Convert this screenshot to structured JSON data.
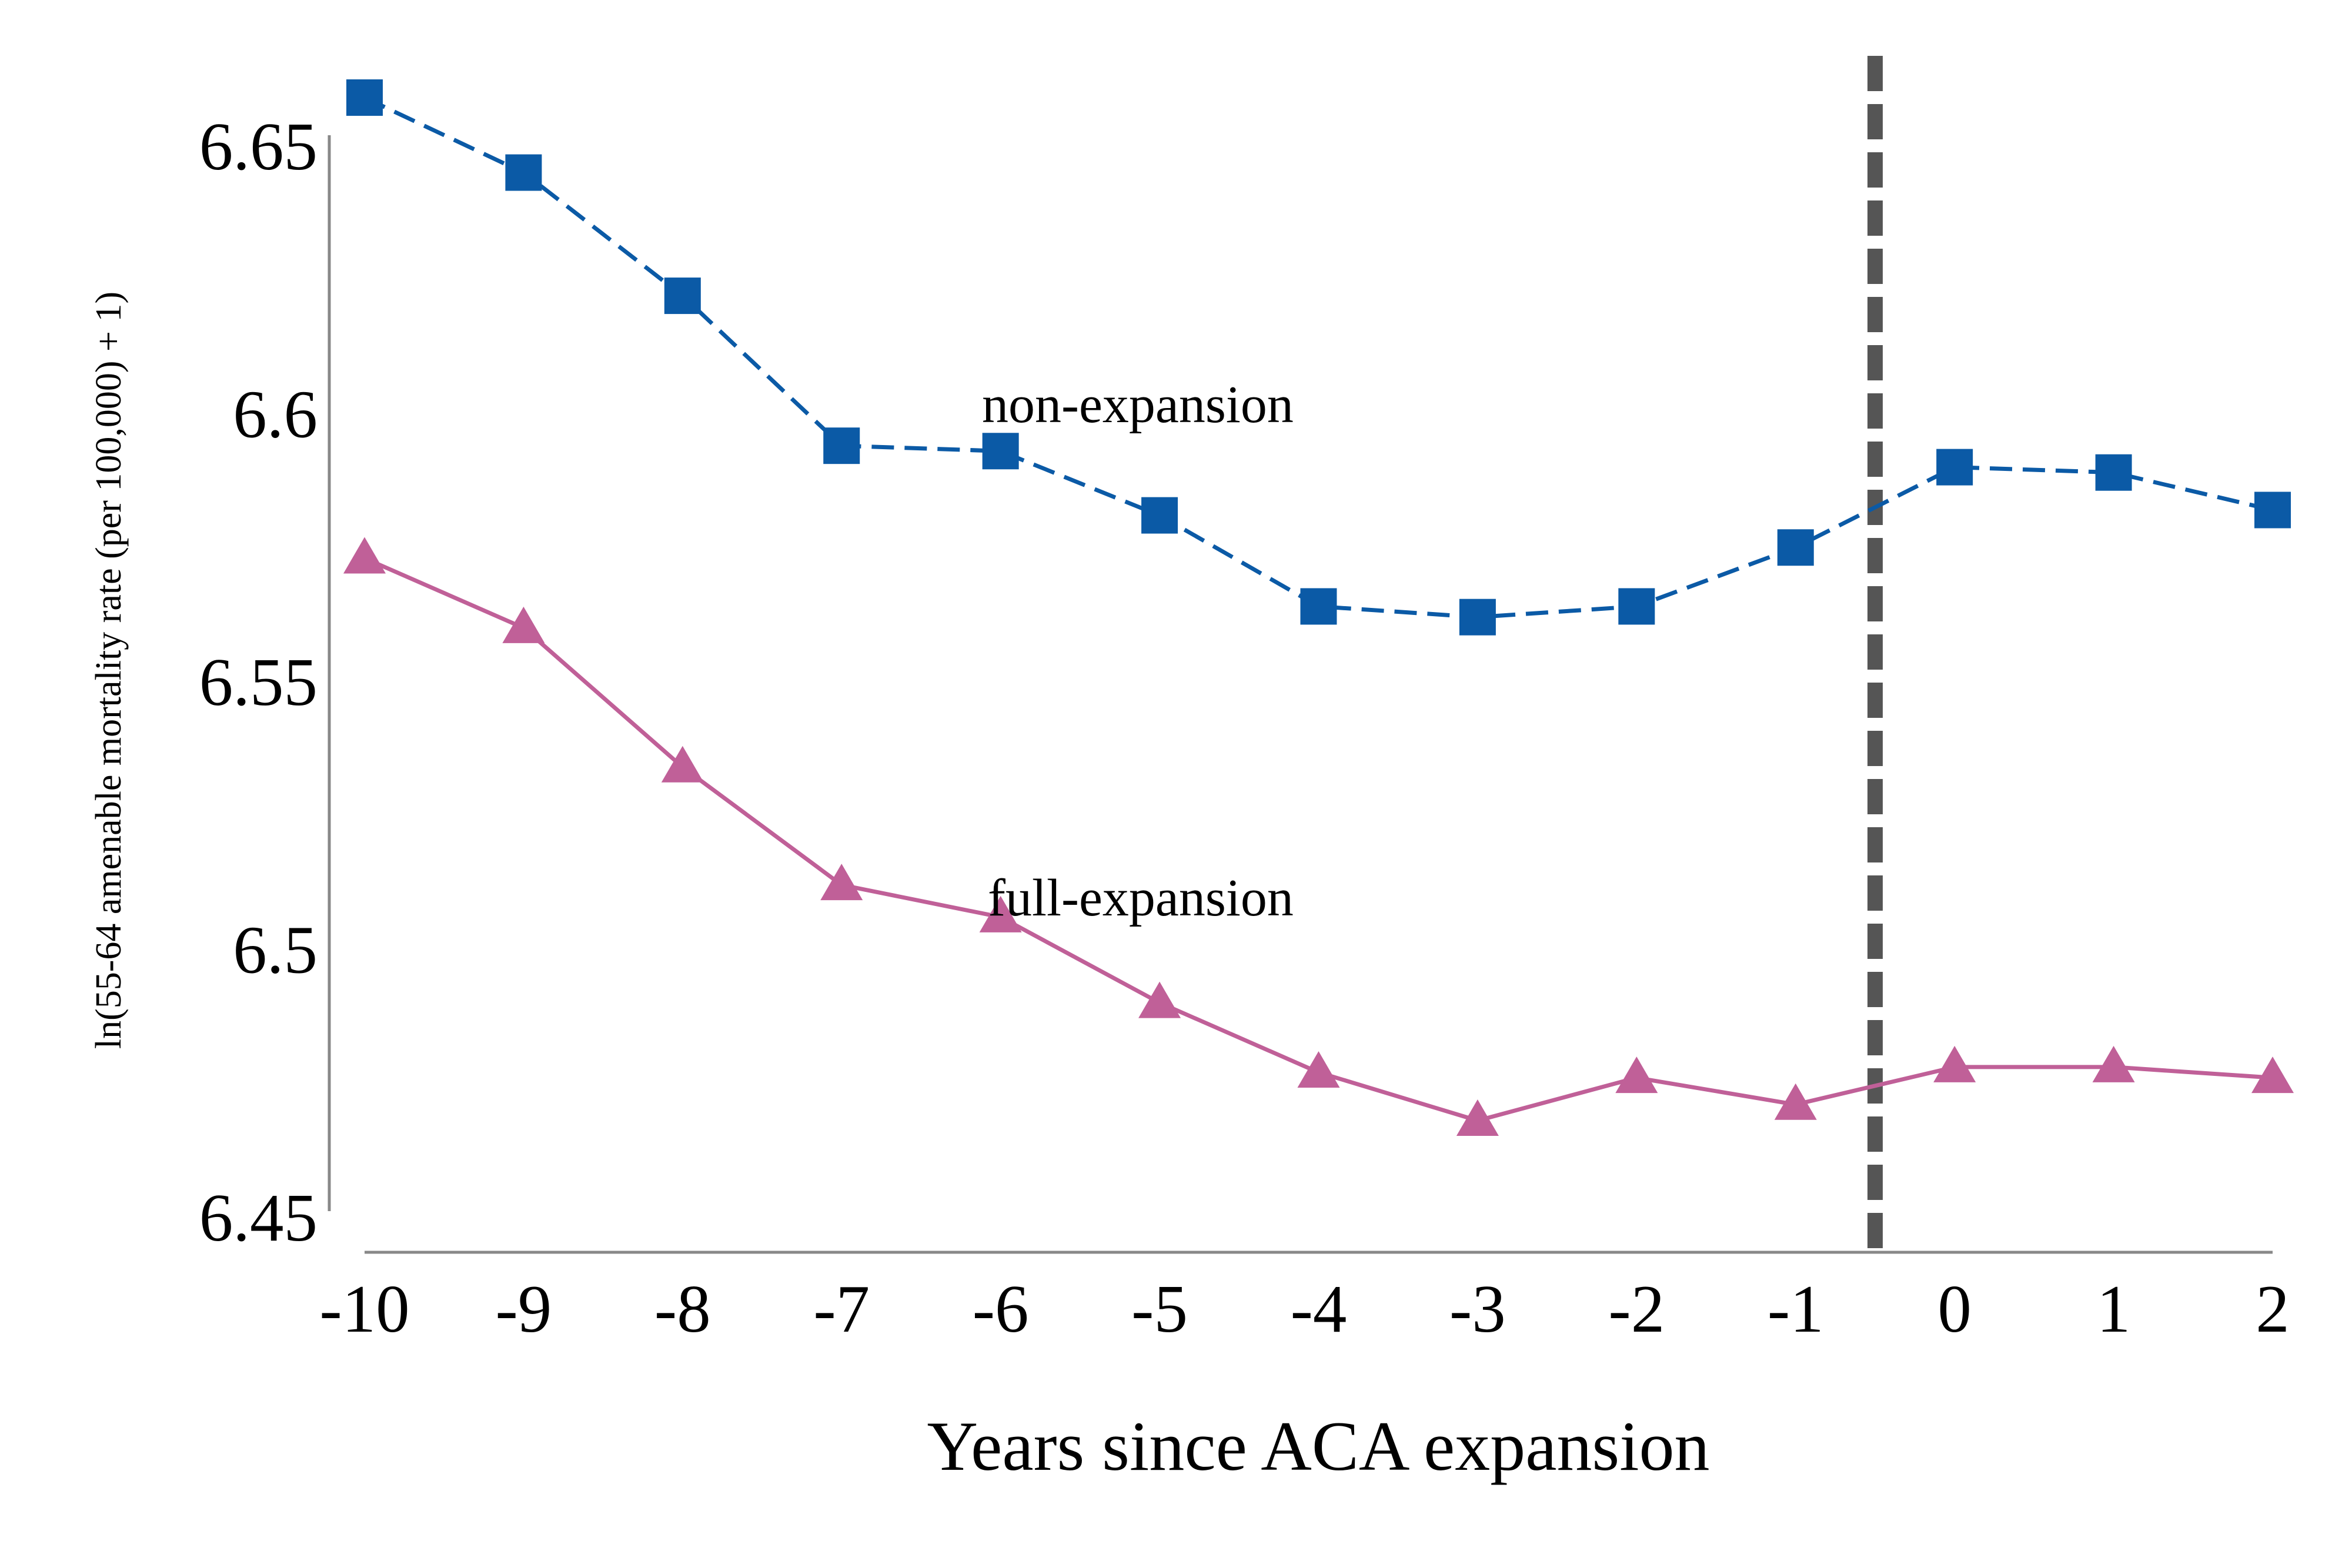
{
  "chart_data": {
    "type": "line",
    "xlabel": "Years since ACA expansion",
    "ylabel": "ln(55-64 amenable mortality rate (per 100,000) + 1)",
    "x": [
      -10,
      -9,
      -8,
      -7,
      -6,
      -5,
      -4,
      -3,
      -2,
      -1,
      0,
      1,
      2
    ],
    "x_tick_labels": [
      "-10",
      "-9",
      "-8",
      "-7",
      "-6",
      "-5",
      "-4",
      "-3",
      "-2",
      "-1",
      "0",
      "1",
      "2"
    ],
    "y_tick_labels": [
      "6.45",
      "6.5",
      "6.55",
      "6.6",
      "6.65"
    ],
    "ylim": [
      6.45,
      6.65
    ],
    "xlim": [
      -10,
      2
    ],
    "vertical_reference_line_x": -0.5,
    "grid": false,
    "legend": "inline labels",
    "series": [
      {
        "name": "non-expansion",
        "color": "#0b5aa6",
        "marker": "square",
        "line_style": "dashed",
        "values": [
          6.659,
          6.645,
          6.622,
          6.594,
          6.593,
          6.581,
          6.564,
          6.562,
          6.564,
          6.575,
          6.59,
          6.589,
          6.582
        ]
      },
      {
        "name": "full-expansion",
        "color": "#c06098",
        "marker": "triangle",
        "line_style": "solid",
        "values": [
          6.573,
          6.56,
          6.534,
          6.512,
          6.506,
          6.49,
          6.477,
          6.468,
          6.476,
          6.471,
          6.478,
          6.478,
          6.476
        ]
      }
    ]
  }
}
